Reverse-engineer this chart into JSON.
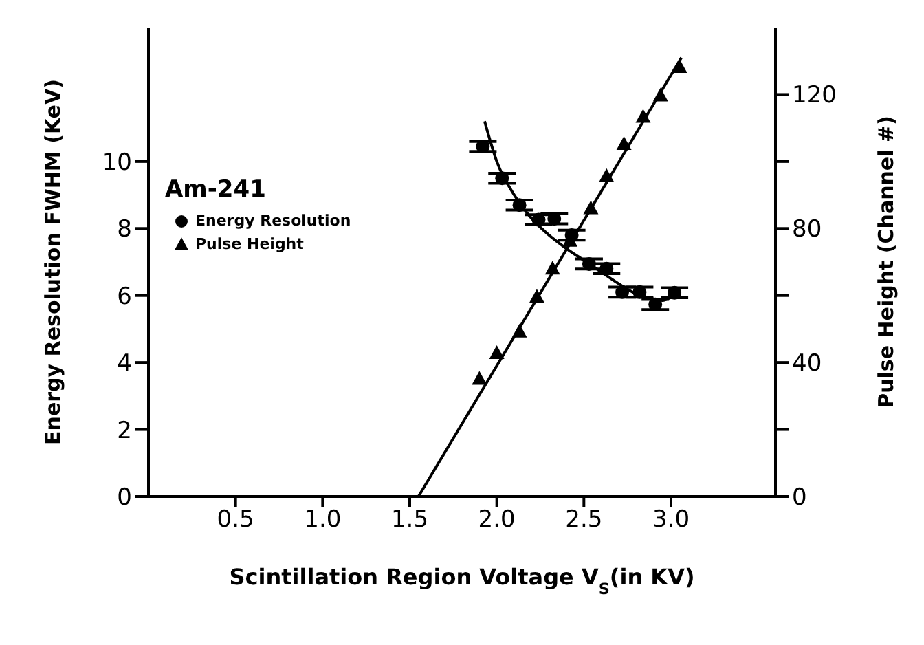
{
  "chart_data": {
    "type": "scatter",
    "xlabel": "Scintillation Region Voltage V$_{S}$(in KV)",
    "ylabel": "Energy Resolution FWHM (KeV)",
    "y2label": "Pulse Height (Channel #)",
    "legend_title": "Am-241",
    "legend": "top left",
    "xlim": [
      0,
      3.6
    ],
    "xticks": [
      0.5,
      {
        "value": 1,
        "label": "1.0"
      },
      1.5,
      {
        "value": 2,
        "label": "2.0"
      },
      2.5,
      {
        "value": 3,
        "label": "3.0"
      }
    ],
    "ylim": [
      0,
      14
    ],
    "yticks": [
      0,
      2,
      4,
      6,
      8,
      10
    ],
    "y2lim": [
      0,
      140
    ],
    "y2ticks": [
      0,
      {
        "value": 20,
        "label": null
      },
      40,
      {
        "value": 60,
        "label": null
      },
      80,
      {
        "value": 100,
        "label": null
      },
      120
    ],
    "series": [
      {
        "name": "Energy Resolution",
        "marker": "circle",
        "color": "#000000",
        "x": [
          1.92,
          2.03,
          2.13,
          2.24,
          2.33,
          2.43,
          2.53,
          2.63,
          2.72,
          2.82,
          2.91,
          3.02
        ],
        "values": [
          10.45,
          9.5,
          8.7,
          8.26,
          8.29,
          7.8,
          6.94,
          6.8,
          6.1,
          6.1,
          5.73,
          6.08
        ],
        "errors": [
          0.15,
          0.15,
          0.15,
          0.15,
          0.15,
          0.15,
          0.15,
          0.15,
          0.15,
          0.15,
          0.15,
          0.15
        ]
      },
      {
        "name": "Pulse Height",
        "marker": "triangle",
        "color": "#000000",
        "axis": "y2",
        "x": [
          1.9,
          2.0,
          2.13,
          2.23,
          2.32,
          2.42,
          2.54,
          2.63,
          2.73,
          2.84,
          2.94,
          3.05
        ],
        "values": [
          35.0,
          42.7,
          49.1,
          59.5,
          67.9,
          76.2,
          85.9,
          95.5,
          105.1,
          113.2,
          119.6,
          128.1
        ]
      },
      {
        "type": "line",
        "marker": "none",
        "line_style": "solid",
        "color": "#000000",
        "x": [
          1.93,
          2.0,
          2.1,
          2.2,
          2.3,
          2.4,
          2.5,
          2.6,
          2.7,
          2.8,
          2.9,
          2.95,
          3.0
        ],
        "values": [
          11.2,
          10.0,
          9.0,
          8.3,
          7.8,
          7.4,
          7.05,
          6.7,
          6.35,
          6.05,
          5.9,
          5.85,
          5.95
        ]
      },
      {
        "type": "line",
        "marker": "none",
        "line_style": "solid",
        "color": "#000000",
        "axis": "y2",
        "x": [
          1.55,
          3.06
        ],
        "values": [
          0,
          131
        ]
      }
    ]
  }
}
